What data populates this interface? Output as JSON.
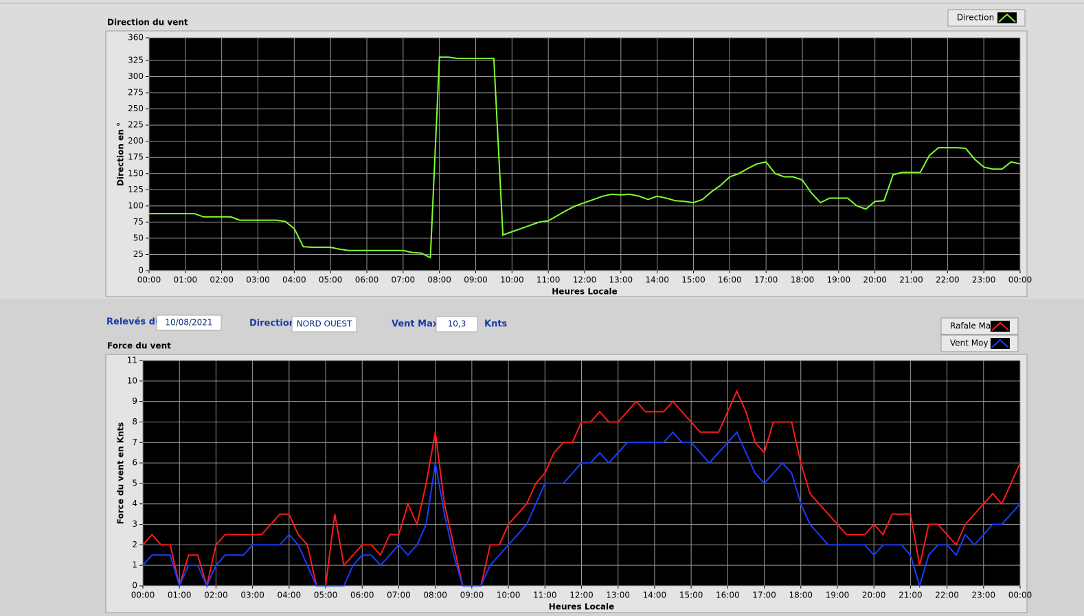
{
  "chart_data": [
    {
      "type": "line",
      "title": "Direction du vent",
      "ylabel": "Direction en °",
      "xlabel": "Heures Locale",
      "xlim": [
        0,
        24
      ],
      "ylim": [
        0,
        360
      ],
      "grid": true,
      "xticks": [
        {
          "value": 0,
          "label": "00:00"
        },
        {
          "value": 1,
          "label": "01:00"
        },
        {
          "value": 2,
          "label": "02:00"
        },
        {
          "value": 3,
          "label": "03:00"
        },
        {
          "value": 4,
          "label": "04:00"
        },
        {
          "value": 5,
          "label": "05:00"
        },
        {
          "value": 6,
          "label": "06:00"
        },
        {
          "value": 7,
          "label": "07:00"
        },
        {
          "value": 8,
          "label": "08:00"
        },
        {
          "value": 9,
          "label": "09:00"
        },
        {
          "value": 10,
          "label": "10:00"
        },
        {
          "value": 11,
          "label": "11:00"
        },
        {
          "value": 12,
          "label": "12:00"
        },
        {
          "value": 13,
          "label": "13:00"
        },
        {
          "value": 14,
          "label": "14:00"
        },
        {
          "value": 15,
          "label": "15:00"
        },
        {
          "value": 16,
          "label": "16:00"
        },
        {
          "value": 17,
          "label": "17:00"
        },
        {
          "value": 18,
          "label": "18:00"
        },
        {
          "value": 19,
          "label": "19:00"
        },
        {
          "value": 20,
          "label": "20:00"
        },
        {
          "value": 21,
          "label": "21:00"
        },
        {
          "value": 22,
          "label": "22:00"
        },
        {
          "value": 23,
          "label": "23:00"
        },
        {
          "value": 24,
          "label": "00:00"
        }
      ],
      "yticks": [
        0,
        25,
        50,
        75,
        100,
        125,
        150,
        175,
        200,
        225,
        250,
        275,
        300,
        325,
        360
      ],
      "x": [
        0,
        0.25,
        0.5,
        0.75,
        1,
        1.25,
        1.5,
        1.75,
        2,
        2.25,
        2.5,
        2.75,
        3,
        3.25,
        3.5,
        3.75,
        4,
        4.25,
        4.5,
        4.75,
        5,
        5.25,
        5.5,
        5.75,
        6,
        6.25,
        6.5,
        6.75,
        7,
        7.25,
        7.5,
        7.75,
        8,
        8.25,
        8.5,
        8.75,
        9,
        9.25,
        9.5,
        9.75,
        10,
        10.25,
        10.5,
        10.75,
        11,
        11.25,
        11.5,
        11.75,
        12,
        12.25,
        12.5,
        12.75,
        13,
        13.25,
        13.5,
        13.75,
        14,
        14.25,
        14.5,
        14.75,
        15,
        15.25,
        15.5,
        15.75,
        16,
        16.25,
        16.5,
        16.75,
        17,
        17.25,
        17.5,
        17.75,
        18,
        18.25,
        18.5,
        18.75,
        19,
        19.25,
        19.5,
        19.75,
        20,
        20.25,
        20.5,
        20.75,
        21,
        21.25,
        21.5,
        21.75,
        22,
        22.25,
        22.5,
        22.75,
        23,
        23.25,
        23.5,
        23.75,
        24
      ],
      "series": [
        {
          "name": "Direction",
          "color": "#80ff30",
          "values": [
            88,
            88,
            88,
            88,
            88,
            88,
            83,
            83,
            83,
            83,
            78,
            78,
            78,
            78,
            78,
            76,
            65,
            37,
            36,
            36,
            36,
            33,
            31,
            31,
            31,
            31,
            31,
            31,
            31,
            28,
            27,
            20,
            330,
            330,
            328,
            328,
            328,
            328,
            328,
            55,
            60,
            65,
            70,
            75,
            77,
            85,
            93,
            100,
            105,
            110,
            115,
            118,
            117,
            118,
            115,
            110,
            115,
            112,
            108,
            107,
            105,
            110,
            122,
            132,
            145,
            150,
            158,
            165,
            168,
            150,
            145,
            145,
            140,
            120,
            105,
            112,
            112,
            112,
            100,
            95,
            107,
            108,
            148,
            152,
            152,
            152,
            178,
            190,
            190,
            190,
            189,
            172,
            160,
            157,
            157,
            168,
            165
          ]
        }
      ]
    },
    {
      "type": "line",
      "title": "Force du vent",
      "ylabel": "Force du vent en Knts",
      "xlabel": "Heures Locale",
      "xlim": [
        0,
        24
      ],
      "ylim": [
        0,
        11
      ],
      "grid": true,
      "xticks": [
        {
          "value": 0,
          "label": "00:00"
        },
        {
          "value": 1,
          "label": "01:00"
        },
        {
          "value": 2,
          "label": "02:00"
        },
        {
          "value": 3,
          "label": "03:00"
        },
        {
          "value": 4,
          "label": "04:00"
        },
        {
          "value": 5,
          "label": "05:00"
        },
        {
          "value": 6,
          "label": "06:00"
        },
        {
          "value": 7,
          "label": "07:00"
        },
        {
          "value": 8,
          "label": "08:00"
        },
        {
          "value": 9,
          "label": "09:00"
        },
        {
          "value": 10,
          "label": "10:00"
        },
        {
          "value": 11,
          "label": "11:00"
        },
        {
          "value": 12,
          "label": "12:00"
        },
        {
          "value": 13,
          "label": "13:00"
        },
        {
          "value": 14,
          "label": "14:00"
        },
        {
          "value": 15,
          "label": "15:00"
        },
        {
          "value": 16,
          "label": "16:00"
        },
        {
          "value": 17,
          "label": "17:00"
        },
        {
          "value": 18,
          "label": "18:00"
        },
        {
          "value": 19,
          "label": "19:00"
        },
        {
          "value": 20,
          "label": "20:00"
        },
        {
          "value": 21,
          "label": "21:00"
        },
        {
          "value": 22,
          "label": "22:00"
        },
        {
          "value": 23,
          "label": "23:00"
        },
        {
          "value": 24,
          "label": "00:00"
        }
      ],
      "yticks": [
        0,
        1,
        2,
        3,
        4,
        5,
        6,
        7,
        8,
        9,
        10,
        11
      ],
      "x": [
        0,
        0.25,
        0.5,
        0.75,
        1,
        1.25,
        1.5,
        1.75,
        2,
        2.25,
        2.5,
        2.75,
        3,
        3.25,
        3.5,
        3.75,
        4,
        4.25,
        4.5,
        4.75,
        5,
        5.25,
        5.5,
        5.75,
        6,
        6.25,
        6.5,
        6.75,
        7,
        7.25,
        7.5,
        7.75,
        8,
        8.25,
        8.5,
        8.75,
        9,
        9.25,
        9.5,
        9.75,
        10,
        10.25,
        10.5,
        10.75,
        11,
        11.25,
        11.5,
        11.75,
        12,
        12.25,
        12.5,
        12.75,
        13,
        13.25,
        13.5,
        13.75,
        14,
        14.25,
        14.5,
        14.75,
        15,
        15.25,
        15.5,
        15.75,
        16,
        16.25,
        16.5,
        16.75,
        17,
        17.25,
        17.5,
        17.75,
        18,
        18.25,
        18.5,
        18.75,
        19,
        19.25,
        19.5,
        19.75,
        20,
        20.25,
        20.5,
        20.75,
        21,
        21.25,
        21.5,
        21.75,
        22,
        22.25,
        22.5,
        22.75,
        23,
        23.25,
        23.5,
        23.75,
        24
      ],
      "series": [
        {
          "name": "Rafale Max",
          "color": "#ff1a1a",
          "values": [
            2,
            2.5,
            2,
            2,
            0,
            1.5,
            1.5,
            0,
            2,
            2.5,
            2.5,
            2.5,
            2.5,
            2.5,
            3,
            3.5,
            3.5,
            2.5,
            2,
            0,
            0,
            3.5,
            1,
            1.5,
            2,
            2,
            1.5,
            2.5,
            2.5,
            4,
            3,
            5,
            7.5,
            4,
            2,
            0,
            0,
            0,
            2,
            2,
            3,
            3.5,
            4,
            5,
            5.5,
            6.5,
            7,
            7,
            8,
            8,
            8.5,
            8,
            8,
            8.5,
            9,
            8.5,
            8.5,
            8.5,
            9,
            8.5,
            8,
            7.5,
            7.5,
            7.5,
            8.5,
            9.5,
            8.5,
            7,
            6.5,
            8,
            8,
            8,
            6,
            4.5,
            4,
            3.5,
            3,
            2.5,
            2.5,
            2.5,
            3,
            2.5,
            3.5,
            3.5,
            3.5,
            1,
            3,
            3,
            2.5,
            2,
            3,
            3.5,
            4,
            4.5,
            4,
            5,
            6
          ]
        },
        {
          "name": "Vent Moy",
          "color": "#1a3cff",
          "values": [
            1,
            1.5,
            1.5,
            1.5,
            0,
            1,
            1,
            0,
            1,
            1.5,
            1.5,
            1.5,
            2,
            2,
            2,
            2,
            2.5,
            2,
            1,
            0,
            0,
            0,
            0,
            1,
            1.5,
            1.5,
            1,
            1.5,
            2,
            1.5,
            2,
            3,
            6,
            3.5,
            1.5,
            0,
            0,
            0,
            1,
            1.5,
            2,
            2.5,
            3,
            4,
            5,
            5,
            5,
            5.5,
            6,
            6,
            6.5,
            6,
            6.5,
            7,
            7,
            7,
            7,
            7,
            7.5,
            7,
            7,
            6.5,
            6,
            6.5,
            7,
            7.5,
            6.5,
            5.5,
            5,
            5.5,
            6,
            5.5,
            4,
            3,
            2.5,
            2,
            2,
            2,
            2,
            2,
            1.5,
            2,
            2,
            2,
            1.5,
            0,
            1.5,
            2,
            2,
            1.5,
            2.5,
            2,
            2.5,
            3,
            3,
            3.5,
            4
          ]
        }
      ]
    }
  ],
  "form": {
    "date_label": "Relevés du",
    "date": "10/08/2021",
    "direction_label": "Direction",
    "direction": "NORD OUEST",
    "max_label": "Vent Max",
    "max": "10,3",
    "unit": "Knts"
  }
}
